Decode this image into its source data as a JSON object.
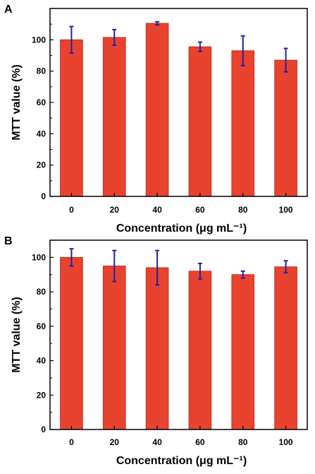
{
  "chart_data": [
    {
      "panel": "A",
      "type": "bar",
      "categories": [
        "0",
        "20",
        "40",
        "60",
        "80",
        "100"
      ],
      "values": [
        100,
        101.5,
        110.5,
        95.5,
        93,
        87
      ],
      "errors": [
        8.5,
        5,
        1,
        3,
        9.5,
        7.5
      ],
      "xlabel": "Concentration (μg mL⁻¹)",
      "ylabel": "MTT value (%)",
      "ylim": [
        0,
        120
      ],
      "yticks": [
        0,
        20,
        40,
        60,
        80,
        100
      ],
      "colors": {
        "bar": "#e8432f",
        "bar_edge": "#c62f1f",
        "error": "#2323a0"
      }
    },
    {
      "panel": "B",
      "type": "bar",
      "categories": [
        "0",
        "20",
        "40",
        "60",
        "80",
        "100"
      ],
      "values": [
        100,
        95,
        94,
        92,
        90,
        94.5
      ],
      "errors": [
        5,
        9,
        10,
        4.5,
        2,
        3.5
      ],
      "xlabel": "Concentration (μg mL⁻¹)",
      "ylabel": "MTT value (%)",
      "ylim": [
        0,
        110
      ],
      "yticks": [
        0,
        20,
        40,
        60,
        80,
        100
      ],
      "colors": {
        "bar": "#e8432f",
        "bar_edge": "#c62f1f",
        "error": "#2323a0"
      }
    }
  ]
}
